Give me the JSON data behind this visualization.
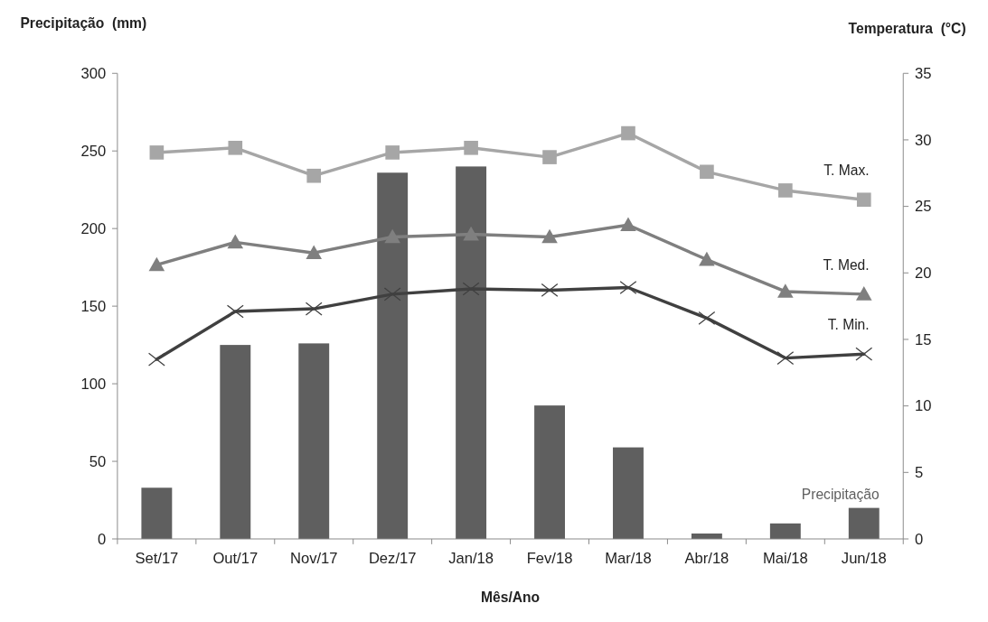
{
  "chart_data": {
    "type": "bar",
    "xlabel": "Mês/Ano",
    "ylabel": "Precipitação  (mm)",
    "y2label": "Temperatura  (°C)",
    "categories": [
      "Set/17",
      "Out/17",
      "Nov/17",
      "Dez/17",
      "Jan/18",
      "Fev/18",
      "Mar/18",
      "Abr/18",
      "Mai/18",
      "Jun/18"
    ],
    "series": [
      {
        "name": "Precipitação",
        "color": "#5f5f5f",
        "values": [
          33,
          125,
          126,
          236,
          240,
          86,
          59,
          3.5,
          10,
          20
        ]
      },
      {
        "name": "T. Max.",
        "type": "line",
        "axis": "y2",
        "marker": "square",
        "color": "#a6a6a6",
        "values": [
          29.05,
          29.4,
          27.3,
          29.05,
          29.4,
          28.7,
          30.5,
          27.6,
          26.2,
          25.5
        ]
      },
      {
        "name": "T. Med.",
        "type": "line",
        "axis": "y2",
        "marker": "triangle",
        "color": "#7f7f7f",
        "values": [
          20.6,
          22.3,
          21.5,
          22.7,
          22.9,
          22.7,
          23.6,
          21.0,
          18.6,
          18.4
        ]
      },
      {
        "name": "T. Min.",
        "type": "line",
        "axis": "y2",
        "marker": "cross",
        "color": "#404040",
        "values": [
          13.5,
          17.1,
          17.3,
          18.4,
          18.8,
          18.7,
          18.9,
          16.6,
          13.6,
          13.9
        ]
      }
    ],
    "ylim": [
      0,
      300
    ],
    "yticks": [
      0,
      50,
      100,
      150,
      200,
      250,
      300
    ],
    "y2lim": [
      0,
      35
    ],
    "y2ticks": [
      0,
      5,
      10,
      15,
      20,
      25,
      30,
      35
    ],
    "grid": false,
    "line_style": "solid"
  }
}
